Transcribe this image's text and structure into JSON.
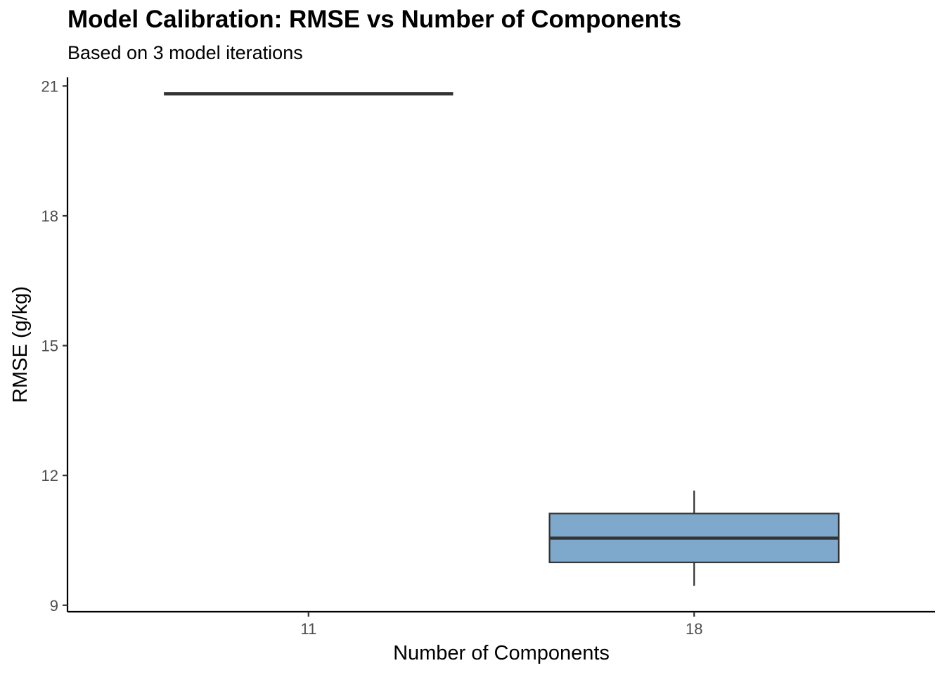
{
  "chart_data": {
    "type": "box",
    "title": "Model Calibration: RMSE vs Number of Components",
    "subtitle": "Based on 3 model iterations",
    "xlabel": "Number of Components",
    "ylabel": "RMSE (g/kg)",
    "categories": [
      "11",
      "18"
    ],
    "ylim": [
      8.85,
      21.2
    ],
    "yticks": [
      9,
      12,
      15,
      18,
      21
    ],
    "ytick_labels": [
      "9",
      "12",
      "15",
      "18",
      "21"
    ],
    "boxes": [
      {
        "category": "11",
        "min": 20.82,
        "q1": 20.82,
        "median": 20.82,
        "q3": 20.82,
        "max": 20.82
      },
      {
        "category": "18",
        "min": 9.45,
        "q1": 9.99,
        "median": 10.55,
        "q3": 11.12,
        "max": 11.65
      }
    ],
    "fill_color": "#7ea8cc",
    "line_color": "#333333",
    "axis_color": "#000000",
    "grid": false,
    "legend": "none"
  }
}
